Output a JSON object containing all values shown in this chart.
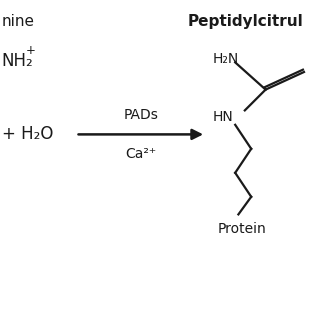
{
  "background_color": "#ffffff",
  "left_label_nine": "nine",
  "left_label_nh2_sup": "NH₂",
  "left_label_h2o": "+ H₂O",
  "arrow_label_top": "PADs",
  "arrow_label_bottom": "Ca²⁺",
  "right_label_top": "Peptidylcitrul",
  "right_label_h2n": "H₂N",
  "right_label_hn": "HN",
  "right_label_protein": "Protein",
  "text_color": "#1a1a1a",
  "line_color": "#1a1a1a",
  "figsize": [
    3.2,
    3.2
  ],
  "dpi": 100
}
